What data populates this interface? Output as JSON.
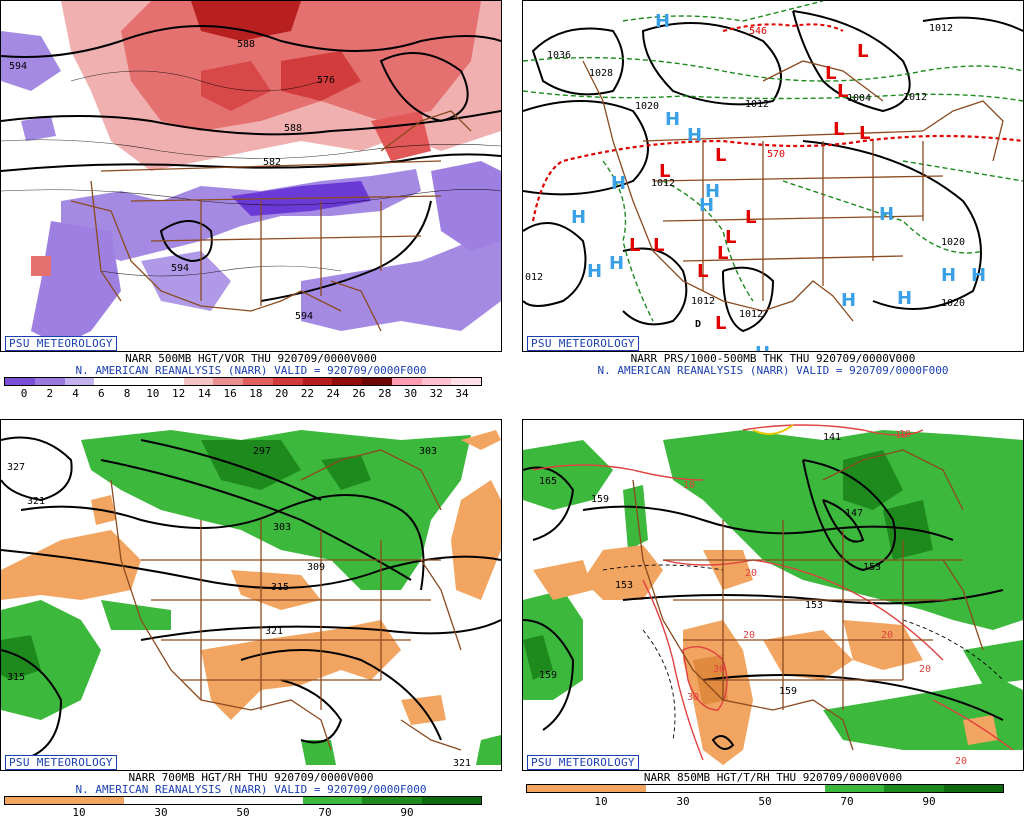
{
  "panels": [
    {
      "id": "vor500",
      "psu_label": "PSU METEOROLOGY",
      "line1": "NARR 500MB HGT/VOR THU 920709/0000V000",
      "line2": "N. AMERICAN REANALYSIS (NARR) VALID = 920709/0000F000",
      "colorbar": [
        "#7a4fd6",
        "#9a7ae0",
        "#c4b2ee",
        "#ffffff",
        "#ffffff",
        "#ffffff",
        "#f4c4c4",
        "#ec8f8f",
        "#e06060",
        "#d23a3a",
        "#b81c1c",
        "#920c0c",
        "#6e0606",
        "#ff9bb4",
        "#ffc0d0",
        "#ffe0e8"
      ],
      "ticks": [
        "0",
        "2",
        "4",
        "6",
        "8",
        "10",
        "12",
        "14",
        "16",
        "18",
        "20",
        "22",
        "24",
        "26",
        "28",
        "30",
        "32",
        "34"
      ],
      "contour_labels": [
        "594",
        "588",
        "582",
        "594",
        "594",
        "588",
        "576"
      ]
    },
    {
      "id": "prs",
      "psu_label": "PSU METEOROLOGY",
      "line1": "NARR PRS/1000-500MB THK THU 920709/0000V000",
      "line2": "N. AMERICAN REANALYSIS (NARR) VALID = 920709/0000F000",
      "contour_labels": [
        "1036",
        "1028",
        "1020",
        "1012",
        "1012",
        "1004",
        "1012",
        "1020",
        "1020",
        "012",
        "1012",
        "1012",
        "1012",
        "546",
        "570"
      ],
      "H": "H",
      "L": "L",
      "D": "D"
    },
    {
      "id": "rh700",
      "psu_label": "PSU METEOROLOGY",
      "line1": "NARR 700MB HGT/RH THU 920709/0000V000",
      "line2": "N. AMERICAN REANALYSIS (NARR) VALID = 920709/0000F000",
      "colorbar": [
        "#f2a560",
        "#f2a560",
        "#ffffff",
        "#ffffff",
        "#ffffff",
        "#3cb83c",
        "#1e8a1e",
        "#0e6a0e"
      ],
      "ticks": [
        "10",
        "30",
        "50",
        "70",
        "90"
      ],
      "contour_labels": [
        "327",
        "321",
        "297",
        "303",
        "303",
        "309",
        "315",
        "321",
        "315",
        "321"
      ]
    },
    {
      "id": "t850",
      "psu_label": "PSU METEOROLOGY",
      "line1": "NARR 850MB HGT/T/RH THU 920709/0000V000",
      "colorbar": [
        "#f2a560",
        "#f2a560",
        "#ffffff",
        "#ffffff",
        "#ffffff",
        "#3cb83c",
        "#1e8a1e",
        "#0e6a0e"
      ],
      "ticks": [
        "10",
        "30",
        "50",
        "70",
        "90"
      ],
      "contour_labels": [
        "165",
        "159",
        "153",
        "147",
        "153",
        "159",
        "153",
        "141",
        "159"
      ],
      "temp_labels": [
        "10",
        "10",
        "20",
        "20",
        "30",
        "30",
        "20",
        "20",
        "10",
        "20"
      ]
    }
  ]
}
